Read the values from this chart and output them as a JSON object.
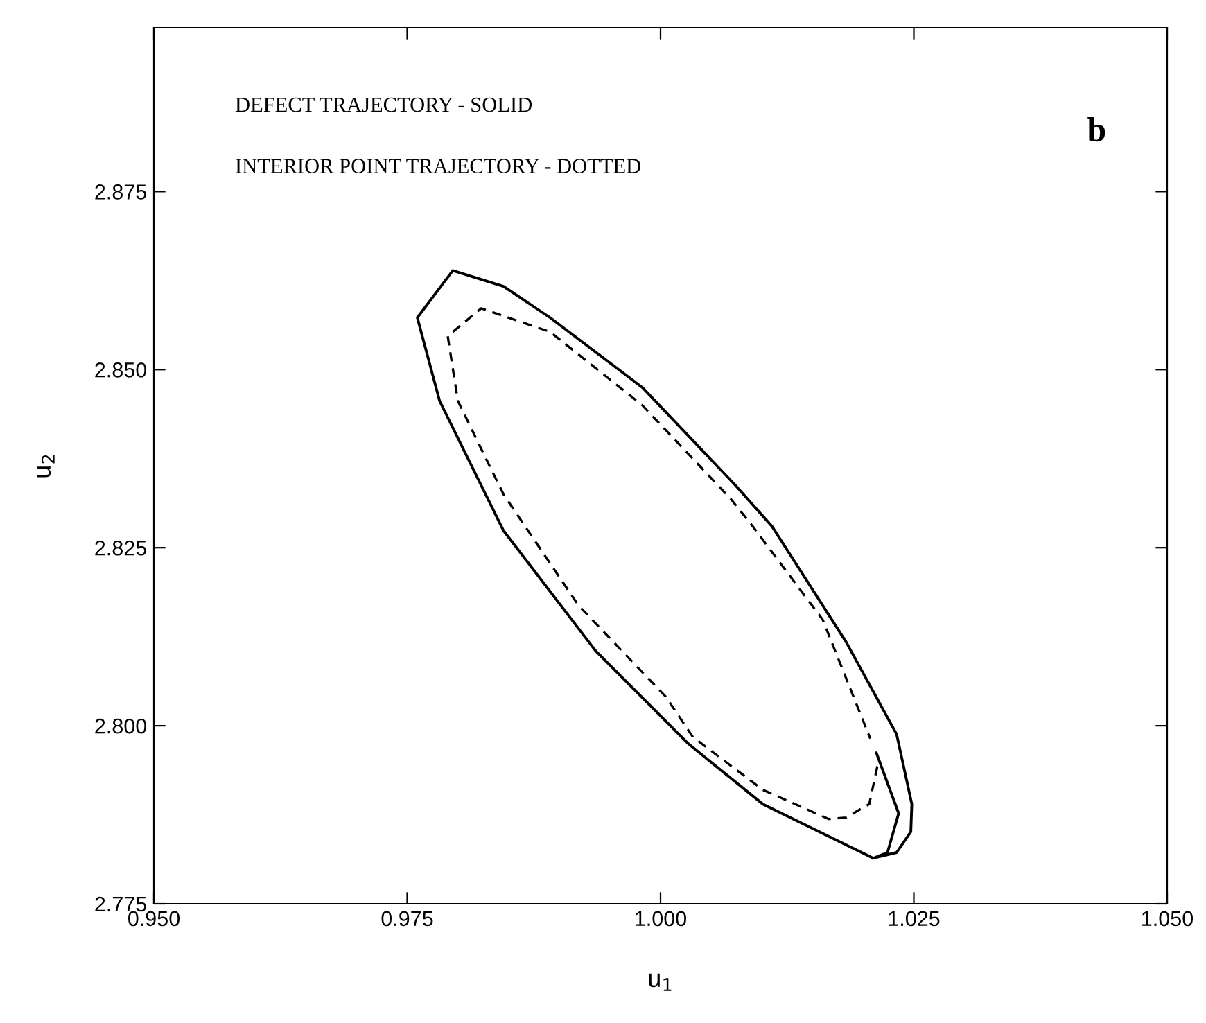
{
  "chart_data": {
    "type": "line",
    "xlabel": "u$_{1}$",
    "ylabel": "u$_{2}$",
    "annotations": [
      "DEFECT TRAJECTORY - SOLID",
      "INTERIOR POINT TRAJECTORY - DOTTED",
      "b"
    ],
    "xlim": [
      0.95,
      1.05
    ],
    "ylim": [
      2.775,
      2.898
    ],
    "xticks": [
      {
        "value": 0.95,
        "label": "0.950"
      },
      {
        "value": 0.975,
        "label": "0.975"
      },
      {
        "value": 1.0,
        "label": "1.000"
      },
      {
        "value": 1.025,
        "label": "1.025"
      },
      {
        "value": 1.05,
        "label": "1.050"
      }
    ],
    "yticks": [
      {
        "value": 2.775,
        "label": "2.775"
      },
      {
        "value": 2.8,
        "label": "2.800"
      },
      {
        "value": 2.825,
        "label": "2.825"
      },
      {
        "value": 2.85,
        "label": "2.850"
      },
      {
        "value": 2.875,
        "label": "2.875"
      }
    ],
    "grid": false,
    "legend": false,
    "marker": "none",
    "series": [
      {
        "color": "#000000",
        "line_style": "solid",
        "x": [
          1.0213,
          1.0235,
          1.0224,
          1.021,
          1.0101,
          1.0028,
          0.9936,
          0.9845,
          0.9782,
          0.976,
          0.9795,
          0.9845,
          0.9891,
          0.9982,
          1.0073,
          1.011,
          1.0183,
          1.0233,
          1.0248,
          1.0247,
          1.0233,
          1.021
        ],
        "values": [
          2.7962,
          2.7877,
          2.7822,
          2.7814,
          2.789,
          2.7974,
          2.8105,
          2.8274,
          2.8456,
          2.8573,
          2.8639,
          2.8617,
          2.8573,
          2.8475,
          2.8339,
          2.828,
          2.8118,
          2.7988,
          2.789,
          2.7851,
          2.7822,
          2.7814
        ]
      },
      {
        "color": "#000000",
        "line_style": "dashed",
        "x": [
          1.0214,
          1.0206,
          1.0183,
          1.0166,
          1.0101,
          1.0032,
          1.0005,
          0.9919,
          0.9845,
          0.98,
          0.979,
          0.9823,
          0.9891,
          0.9982,
          1.0069,
          1.0091,
          1.016,
          1.0196,
          1.0207
        ],
        "values": [
          2.7943,
          2.789,
          2.7871,
          2.7869,
          2.791,
          2.7984,
          2.8041,
          2.8169,
          2.8325,
          2.8456,
          2.8547,
          2.8586,
          2.8553,
          2.845,
          2.8319,
          2.828,
          2.8149,
          2.8021,
          2.7982
        ]
      }
    ]
  }
}
